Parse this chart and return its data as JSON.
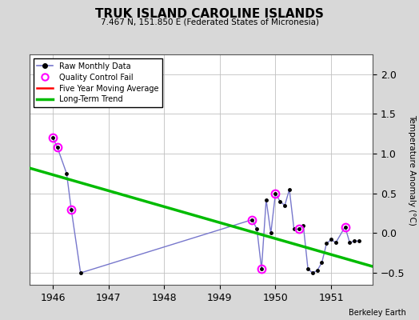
{
  "title": "TRUK ISLAND CAROLINE ISLANDS",
  "subtitle": "7.467 N, 151.850 E (Federated States of Micronesia)",
  "ylabel": "Temperature Anomaly (°C)",
  "credit": "Berkeley Earth",
  "xlim": [
    1945.58,
    1951.75
  ],
  "ylim": [
    -0.65,
    2.25
  ],
  "yticks": [
    -0.5,
    0.0,
    0.5,
    1.0,
    1.5,
    2.0
  ],
  "xticks": [
    1946,
    1947,
    1948,
    1949,
    1950,
    1951
  ],
  "raw_x": [
    1946.0,
    1946.083,
    1946.25,
    1946.333,
    1946.5,
    1949.583,
    1949.667,
    1949.75,
    1949.833,
    1949.917,
    1950.0,
    1950.083,
    1950.167,
    1950.25,
    1950.333,
    1950.417,
    1950.5,
    1950.583,
    1950.667,
    1950.75,
    1950.833,
    1950.917,
    1951.0,
    1951.083,
    1951.25,
    1951.333,
    1951.417,
    1951.5
  ],
  "raw_y": [
    1.2,
    1.08,
    0.75,
    0.3,
    -0.5,
    0.17,
    0.05,
    -0.45,
    0.42,
    0.0,
    0.5,
    0.4,
    0.35,
    0.55,
    0.05,
    0.05,
    0.1,
    -0.45,
    -0.5,
    -0.47,
    -0.37,
    -0.13,
    -0.08,
    -0.12,
    0.08,
    -0.12,
    -0.1,
    -0.1
  ],
  "qc_fail_x": [
    1946.0,
    1946.083,
    1946.333,
    1949.583,
    1949.75,
    1950.0,
    1950.417,
    1951.25
  ],
  "qc_fail_y": [
    1.2,
    1.08,
    0.3,
    0.17,
    -0.45,
    0.5,
    0.05,
    0.08
  ],
  "moving_avg_x": [],
  "moving_avg_y": [],
  "trend_x": [
    1945.58,
    1951.75
  ],
  "trend_y": [
    0.82,
    -0.42
  ],
  "raw_line_color": "#7777cc",
  "raw_dot_color": "#000000",
  "qc_color": "#ff00ff",
  "moving_avg_color": "#ff0000",
  "trend_color": "#00bb00",
  "bg_color": "#d8d8d8",
  "plot_bg_color": "#ffffff",
  "grid_color": "#c0c0c0"
}
